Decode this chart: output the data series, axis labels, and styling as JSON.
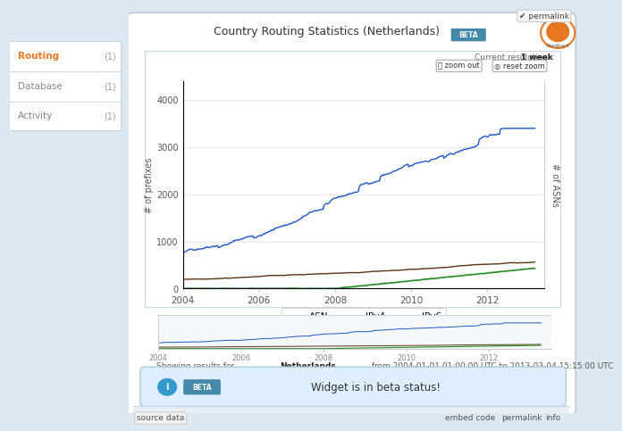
{
  "title": "Country Routing Statistics (Netherlands)",
  "beta_label": "BETA",
  "resolution_text": "Current resolution: ",
  "resolution_value": "1 week",
  "zoom_out_text": "zoom out",
  "reset_zoom_text": "reset zoom",
  "ylabel_left": "# of prefixes",
  "ylabel_right": "# of ASNs",
  "xlabel_years": [
    "2004",
    "2006",
    "2008",
    "2010",
    "2012"
  ],
  "legend_items": [
    "ASN",
    "IPv4",
    "IPv6"
  ],
  "asn_color": "#5c3317",
  "ipv4_color": "#2255cc",
  "ipv6_color": "#228b22",
  "sidebar_items": [
    "Routing",
    "Database",
    "Activity"
  ],
  "sidebar_counts": [
    "(1)",
    "(1)",
    "(1)"
  ],
  "sidebar_active_color": "#e87722",
  "info_text_pre": "Showing results for ",
  "info_text_country": "Netherlands",
  "info_text_post": " from 2004-01-01 01:00:00 UTC to 2013-03-04 15:15:00 UTC",
  "beta_banner": "Widget is in beta status!",
  "bg_color": "#dde8f0",
  "panel_bg": "#ffffff",
  "chart_area_bg": "#ffffff",
  "grid_color": "#e8e8e8",
  "feedback_color": "#e87722",
  "info_banner_bg": "#ddeeff",
  "info_banner_border": "#aaccdd",
  "footer_bg": "#e8eef4",
  "sidebar_bg": "#ffffff",
  "sidebar_border": "#c8d4e0",
  "panel_border": "#b8ccd8"
}
